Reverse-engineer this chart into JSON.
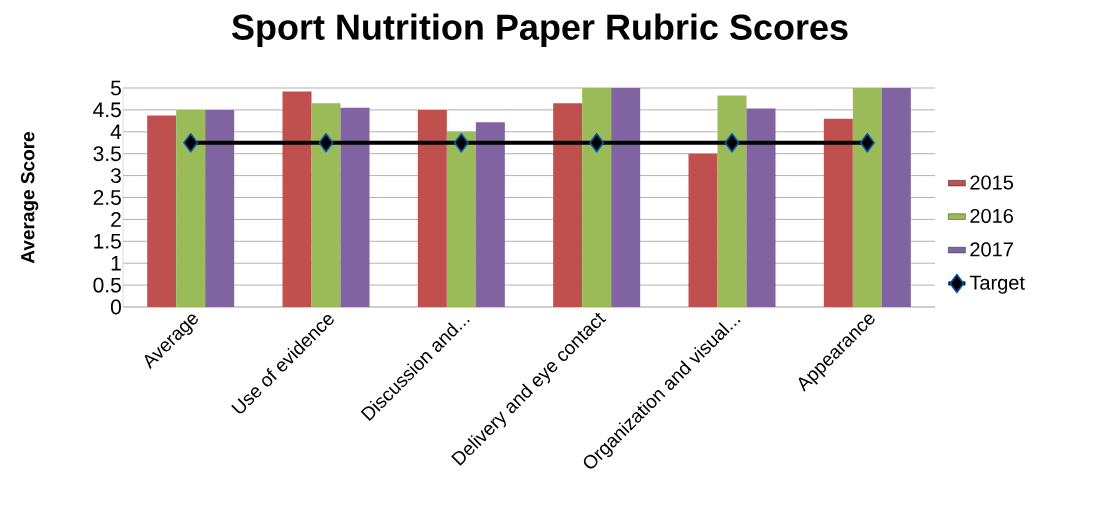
{
  "chart_data": {
    "type": "bar",
    "title": "Sport Nutrition Paper Rubric Scores",
    "ylabel": "Average Score",
    "categories": [
      "Average",
      "Use of evidence",
      "Discussion and...",
      "Delivery and eye contact",
      "Organization and visual...",
      "Appearance"
    ],
    "series": [
      {
        "name": "2015",
        "color": "#c0504d",
        "values": [
          4.37,
          4.92,
          4.5,
          4.65,
          3.5,
          4.3
        ]
      },
      {
        "name": "2016",
        "color": "#9bbb59",
        "values": [
          4.5,
          4.65,
          4.0,
          5,
          4.83,
          5
        ]
      },
      {
        "name": "2017",
        "color": "#8064a2",
        "values": [
          4.5,
          4.55,
          4.22,
          5,
          4.53,
          5
        ]
      },
      {
        "name": "Target",
        "type": "line",
        "marker": "diamond",
        "color": "#000000",
        "values": [
          3.75,
          3.75,
          3.75,
          3.75,
          3.75,
          3.75
        ]
      }
    ],
    "ylim": [
      0,
      5
    ],
    "yticks": [
      0,
      0.5,
      1,
      1.5,
      2,
      2.5,
      3,
      3.5,
      4,
      4.5,
      5
    ],
    "grid": "y",
    "legend": "right"
  }
}
